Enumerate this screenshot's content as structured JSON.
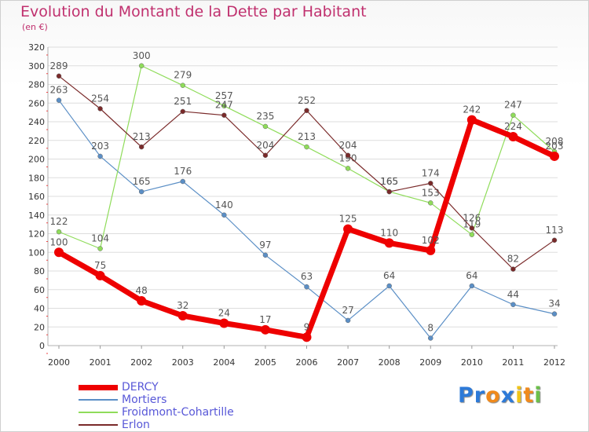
{
  "title": "Evolution du Montant de la Dette par Habitant",
  "subtitle": "(en €)",
  "logo": {
    "text": "Proxiti",
    "letters": [
      "P",
      "r",
      "o",
      "x",
      "i",
      "t",
      "i"
    ],
    "colors": [
      "#2d7ad8",
      "#2d7ad8",
      "#f08a1c",
      "#2d7ad8",
      "#f0c419",
      "#f08a1c",
      "#6cc04a"
    ]
  },
  "chart_data": {
    "type": "line",
    "x": [
      "2000",
      "2001",
      "2002",
      "2003",
      "2004",
      "2005",
      "2006",
      "2007",
      "2008",
      "2009",
      "2010",
      "2011",
      "2012"
    ],
    "ylim": [
      0,
      320
    ],
    "yticks": [
      0,
      20,
      40,
      60,
      80,
      100,
      120,
      140,
      160,
      180,
      200,
      220,
      240,
      260,
      280,
      300,
      320
    ],
    "grid": true,
    "legend_position": "bottom-left",
    "series": [
      {
        "name": "DERCY",
        "color": "#ee0000",
        "thick": true,
        "values": [
          100,
          75,
          48,
          32,
          24,
          17,
          9,
          125,
          110,
          102,
          242,
          224,
          203
        ]
      },
      {
        "name": "Mortiers",
        "color": "#5b8fc6",
        "thick": false,
        "values": [
          263,
          203,
          165,
          176,
          140,
          97,
          63,
          27,
          64,
          8,
          64,
          44,
          34
        ]
      },
      {
        "name": "Froidmont-Cohartille",
        "color": "#8fdc5a",
        "thick": false,
        "values": [
          122,
          104,
          300,
          279,
          257,
          235,
          213,
          190,
          165,
          153,
          119,
          247,
          208
        ]
      },
      {
        "name": "Erlon",
        "color": "#7a2a2a",
        "thick": false,
        "values": [
          289,
          254,
          213,
          251,
          247,
          204,
          252,
          204,
          165,
          174,
          126,
          82,
          113
        ]
      }
    ]
  }
}
